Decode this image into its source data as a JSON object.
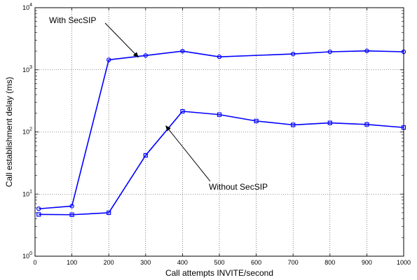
{
  "chart_data": {
    "type": "line",
    "xlabel": "Call attempts INVITE/second",
    "ylabel": "Call establishment delay (ms)",
    "xlim": [
      0,
      1000
    ],
    "ylim": [
      1,
      10000
    ],
    "y_scale": "log",
    "grid": true,
    "x_ticks": [
      0,
      100,
      200,
      300,
      400,
      500,
      600,
      700,
      800,
      900,
      1000
    ],
    "y_ticks": [
      {
        "value": 1,
        "base": "10",
        "exp": "0"
      },
      {
        "value": 10,
        "base": "10",
        "exp": "1"
      },
      {
        "value": 100,
        "base": "10",
        "exp": "2"
      },
      {
        "value": 1000,
        "base": "10",
        "exp": "3"
      },
      {
        "value": 10000,
        "base": "10",
        "exp": "4"
      }
    ],
    "series": [
      {
        "name": "With SecSIP",
        "marker": "circle",
        "color": "#0000ff",
        "x": [
          10,
          100,
          200,
          300,
          400,
          500,
          700,
          800,
          900,
          1000
        ],
        "y": [
          5.8,
          6.4,
          1450,
          1700,
          2000,
          1620,
          1800,
          1950,
          2020,
          1950
        ]
      },
      {
        "name": "Without SecSIP",
        "marker": "square",
        "color": "#0000ff",
        "x": [
          10,
          100,
          200,
          300,
          400,
          500,
          600,
          700,
          800,
          900,
          1000
        ],
        "y": [
          4.7,
          4.65,
          5.0,
          42,
          215,
          190,
          150,
          130,
          140,
          132,
          118
        ]
      }
    ],
    "annotations": [
      {
        "text": "With SecSIP",
        "points_to": {
          "x": 280,
          "y": 1600
        }
      },
      {
        "text": "Without SecSIP",
        "points_to": {
          "x": 355,
          "y": 125
        }
      }
    ]
  }
}
